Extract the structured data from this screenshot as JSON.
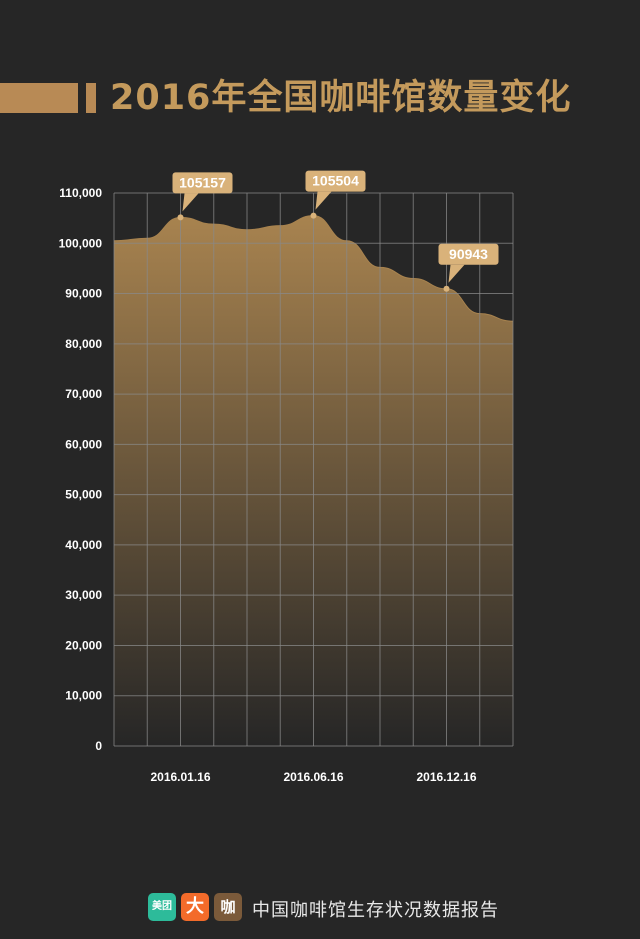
{
  "title": "2016年全国咖啡馆数量变化",
  "colors": {
    "background": "#262626",
    "accent": "#b88a55",
    "area_top": "#a8834f",
    "area_bottom": "#262626",
    "callout": "#d9b27a",
    "grid": "#8a8a8a",
    "text": "#ffffff"
  },
  "chart_data": {
    "type": "area",
    "title": "2016年全国咖啡馆数量变化",
    "xlabel": "",
    "ylabel": "",
    "ylim": [
      0,
      110000
    ],
    "yticks": [
      0,
      10000,
      20000,
      30000,
      40000,
      50000,
      60000,
      70000,
      80000,
      90000,
      100000,
      110000
    ],
    "ytick_labels": [
      "0",
      "10,000",
      "20,000",
      "30,000",
      "40,000",
      "50,000",
      "60,000",
      "70,000",
      "80,000",
      "90,000",
      "100,000",
      "110,000"
    ],
    "xtick_labels": [
      "2016.01.16",
      "2016.06.16",
      "2016.12.16"
    ],
    "grid": true,
    "series": [
      {
        "values": [
          100500,
          101000,
          105157,
          103800,
          102700,
          103500,
          105504,
          100500,
          95200,
          93000,
          90943,
          86000,
          84500
        ]
      }
    ],
    "annotations": [
      {
        "index": 2,
        "label": "105157"
      },
      {
        "index": 6,
        "label": "105504"
      },
      {
        "index": 10,
        "label": "90943"
      }
    ],
    "xtick_indices": [
      2,
      6,
      10
    ]
  },
  "footer": {
    "logos": [
      {
        "name": "meituan-logo",
        "text": "美团"
      },
      {
        "name": "dianping-logo",
        "text": "大"
      },
      {
        "name": "kafei-logo",
        "text": "咖"
      }
    ],
    "text": "中国咖啡馆生存状况数据报告"
  }
}
